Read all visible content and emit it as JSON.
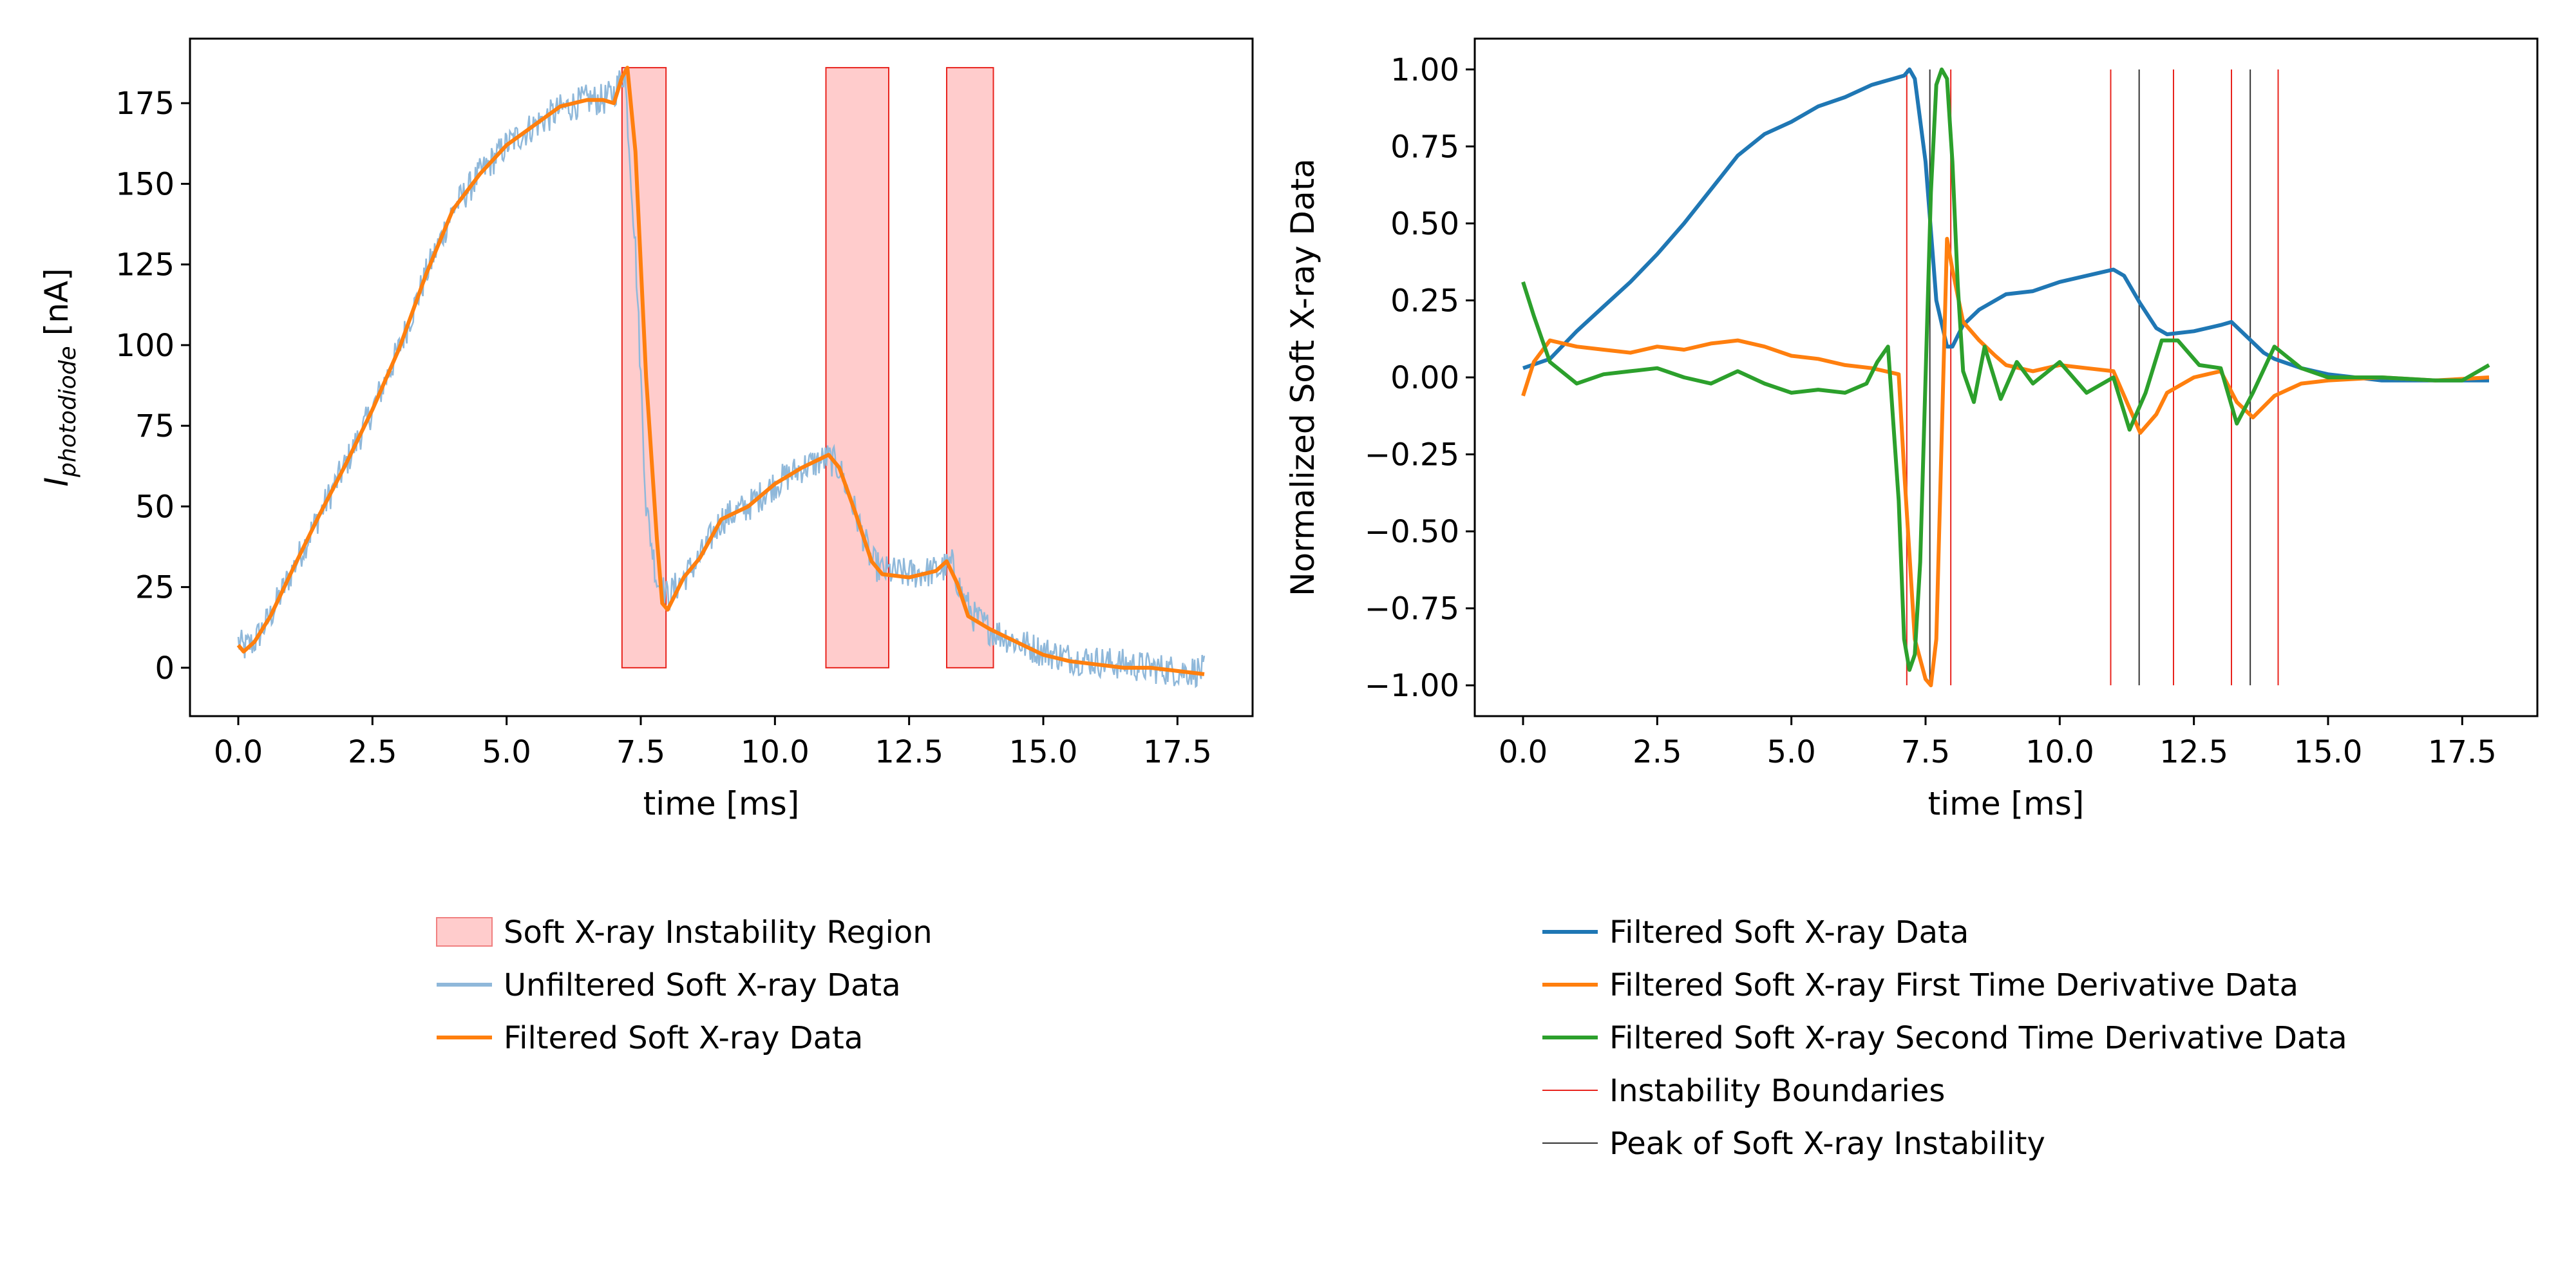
{
  "chart_data": [
    {
      "type": "line",
      "title": "",
      "xlabel": "time [ms]",
      "ylabel": {
        "main": "I",
        "subscript": "photodiode",
        "unit": " [nA]"
      },
      "xlim": [
        -0.9,
        18.9
      ],
      "ylim": [
        -15,
        195
      ],
      "xticks": [
        0.0,
        2.5,
        5.0,
        7.5,
        10.0,
        12.5,
        15.0,
        17.5
      ],
      "xtick_labels": [
        "0.0",
        "2.5",
        "5.0",
        "7.5",
        "10.0",
        "12.5",
        "15.0",
        "17.5"
      ],
      "yticks": [
        0,
        25,
        50,
        75,
        100,
        125,
        150,
        175
      ],
      "ytick_labels": [
        "0",
        "25",
        "50",
        "75",
        "100",
        "125",
        "150",
        "175"
      ],
      "instability_regions": [
        {
          "x0": 7.15,
          "x1": 7.97
        },
        {
          "x0": 10.95,
          "x1": 12.12
        },
        {
          "x0": 13.2,
          "x1": 14.07
        }
      ],
      "region_top": 186,
      "series": [
        {
          "name": "Unfiltered Soft X-ray Data",
          "color": "#8fb8da",
          "x": [
            0.0,
            0.1,
            0.3,
            0.6,
            1.0,
            1.5,
            2.0,
            2.5,
            3.0,
            3.5,
            4.0,
            4.5,
            5.0,
            5.5,
            6.0,
            6.5,
            6.8,
            7.0,
            7.2,
            7.4,
            7.6,
            7.8,
            8.0,
            8.3,
            8.6,
            9.0,
            9.5,
            10.0,
            10.5,
            11.0,
            11.2,
            11.5,
            11.8,
            12.0,
            12.5,
            13.0,
            13.3,
            13.5,
            13.7,
            14.0,
            14.5,
            15.0,
            15.5,
            16.0,
            16.5,
            17.0,
            17.5,
            18.0
          ],
          "y": [
            8,
            6,
            8,
            16,
            30,
            47,
            63,
            80,
            99,
            122,
            142,
            153,
            162,
            168,
            173,
            176,
            176,
            178,
            185,
            130,
            50,
            27,
            22,
            28,
            34,
            46,
            50,
            57,
            62,
            65,
            62,
            48,
            33,
            30,
            29,
            30,
            32,
            22,
            16,
            12,
            8,
            5,
            3,
            2,
            1,
            0,
            -1,
            -1
          ],
          "noise": 5
        },
        {
          "name": "Filtered Soft X-ray Data",
          "color": "#ff7f0e",
          "x": [
            0.0,
            0.1,
            0.3,
            0.6,
            1.0,
            1.5,
            2.0,
            2.5,
            3.0,
            3.5,
            4.0,
            4.5,
            5.0,
            5.5,
            6.0,
            6.5,
            6.8,
            7.0,
            7.15,
            7.25,
            7.4,
            7.6,
            7.8,
            7.9,
            8.0,
            8.3,
            8.6,
            9.0,
            9.5,
            10.0,
            10.5,
            11.0,
            11.2,
            11.5,
            11.8,
            12.0,
            12.5,
            13.0,
            13.2,
            13.4,
            13.6,
            14.0,
            14.5,
            15.0,
            15.5,
            16.0,
            16.5,
            17.0,
            17.5,
            18.0
          ],
          "y": [
            7,
            5,
            8,
            16,
            30,
            47,
            63,
            80,
            99,
            122,
            142,
            153,
            162,
            168,
            174,
            176,
            176,
            175,
            183,
            186,
            160,
            90,
            40,
            20,
            18,
            28,
            34,
            46,
            50,
            57,
            62,
            66,
            62,
            48,
            33,
            29,
            28,
            30,
            33,
            26,
            16,
            12,
            8,
            4,
            2,
            1,
            0,
            0,
            -1,
            -2
          ]
        }
      ],
      "legend": {
        "placement": "below",
        "entries": [
          {
            "label": "Soft X-ray Instability Region",
            "kind": "patch",
            "color": "#ffcccc",
            "edge": "#f08080"
          },
          {
            "label": "Unfiltered Soft X-ray Data",
            "kind": "line",
            "color": "#8fb8da"
          },
          {
            "label": "Filtered Soft X-ray Data",
            "kind": "line",
            "color": "#ff7f0e"
          }
        ]
      }
    },
    {
      "type": "line",
      "title": "",
      "xlabel": "time [ms]",
      "ylabel": "Normalized Soft X-ray Data",
      "xlim": [
        -0.9,
        18.9
      ],
      "ylim": [
        -1.1,
        1.1
      ],
      "xticks": [
        0.0,
        2.5,
        5.0,
        7.5,
        10.0,
        12.5,
        15.0,
        17.5
      ],
      "xtick_labels": [
        "0.0",
        "2.5",
        "5.0",
        "7.5",
        "10.0",
        "12.5",
        "15.0",
        "17.5"
      ],
      "yticks": [
        -1.0,
        -0.75,
        -0.5,
        -0.25,
        0.0,
        0.25,
        0.5,
        0.75,
        1.0
      ],
      "ytick_labels": [
        "−1.00",
        "−0.75",
        "−0.50",
        "−0.25",
        "0.00",
        "0.25",
        "0.50",
        "0.75",
        "1.00"
      ],
      "instability_boundaries": [
        7.15,
        7.97,
        10.95,
        12.12,
        13.2,
        14.07
      ],
      "instability_peaks": [
        7.58,
        11.48,
        13.55
      ],
      "series": [
        {
          "name": "Filtered Soft X-ray Data",
          "color": "#1f77b4",
          "x": [
            0.0,
            0.5,
            1.0,
            1.5,
            2.0,
            2.5,
            3.0,
            3.5,
            4.0,
            4.5,
            5.0,
            5.5,
            6.0,
            6.5,
            6.9,
            7.1,
            7.2,
            7.3,
            7.5,
            7.7,
            7.9,
            8.0,
            8.2,
            8.5,
            9.0,
            9.5,
            10.0,
            10.5,
            11.0,
            11.2,
            11.5,
            11.8,
            12.0,
            12.5,
            13.0,
            13.2,
            13.5,
            13.8,
            14.0,
            14.5,
            15.0,
            15.5,
            16.0,
            16.5,
            17.0,
            17.5,
            18.0
          ],
          "y": [
            0.03,
            0.06,
            0.15,
            0.23,
            0.31,
            0.4,
            0.5,
            0.61,
            0.72,
            0.79,
            0.83,
            0.88,
            0.91,
            0.95,
            0.97,
            0.98,
            1.0,
            0.97,
            0.7,
            0.25,
            0.1,
            0.1,
            0.17,
            0.22,
            0.27,
            0.28,
            0.31,
            0.33,
            0.35,
            0.33,
            0.24,
            0.16,
            0.14,
            0.15,
            0.17,
            0.18,
            0.13,
            0.08,
            0.06,
            0.03,
            0.01,
            0.0,
            -0.01,
            -0.01,
            -0.01,
            -0.01,
            -0.01
          ]
        },
        {
          "name": "Filtered Soft X-ray First Time Derivative Data",
          "color": "#ff7f0e",
          "x": [
            0.0,
            0.2,
            0.5,
            1.0,
            1.5,
            2.0,
            2.5,
            3.0,
            3.5,
            4.0,
            4.5,
            5.0,
            5.5,
            6.0,
            6.5,
            7.0,
            7.1,
            7.3,
            7.5,
            7.6,
            7.7,
            7.8,
            7.9,
            8.0,
            8.2,
            8.5,
            8.8,
            9.0,
            9.5,
            10.0,
            10.5,
            11.0,
            11.3,
            11.5,
            11.8,
            12.0,
            12.5,
            13.0,
            13.3,
            13.6,
            14.0,
            14.5,
            15.0,
            16.0,
            17.0,
            18.0
          ],
          "y": [
            -0.06,
            0.05,
            0.12,
            0.1,
            0.09,
            0.08,
            0.1,
            0.09,
            0.11,
            0.12,
            0.1,
            0.07,
            0.06,
            0.04,
            0.03,
            0.01,
            -0.3,
            -0.85,
            -0.98,
            -1.0,
            -0.85,
            -0.2,
            0.45,
            0.35,
            0.18,
            0.12,
            0.07,
            0.04,
            0.02,
            0.04,
            0.03,
            0.02,
            -0.1,
            -0.18,
            -0.12,
            -0.05,
            0.0,
            0.02,
            -0.08,
            -0.13,
            -0.06,
            -0.02,
            -0.01,
            0.0,
            -0.01,
            0.0
          ]
        },
        {
          "name": "Filtered Soft X-ray Second Time Derivative Data",
          "color": "#2ca02c",
          "x": [
            0.0,
            0.2,
            0.5,
            1.0,
            1.5,
            2.0,
            2.5,
            3.0,
            3.5,
            4.0,
            4.5,
            5.0,
            5.5,
            6.0,
            6.4,
            6.6,
            6.8,
            7.0,
            7.1,
            7.2,
            7.3,
            7.4,
            7.5,
            7.6,
            7.7,
            7.8,
            7.9,
            8.0,
            8.1,
            8.2,
            8.4,
            8.6,
            8.9,
            9.2,
            9.5,
            10.0,
            10.5,
            11.0,
            11.3,
            11.6,
            11.9,
            12.2,
            12.6,
            13.0,
            13.3,
            13.6,
            14.0,
            14.5,
            15.0,
            16.0,
            17.0,
            17.5,
            18.0
          ],
          "y": [
            0.31,
            0.2,
            0.05,
            -0.02,
            0.01,
            0.02,
            0.03,
            0.0,
            -0.02,
            0.02,
            -0.02,
            -0.05,
            -0.04,
            -0.05,
            -0.02,
            0.05,
            0.1,
            -0.4,
            -0.85,
            -0.95,
            -0.9,
            -0.6,
            0.0,
            0.6,
            0.95,
            1.0,
            0.97,
            0.7,
            0.3,
            0.02,
            -0.08,
            0.1,
            -0.07,
            0.05,
            -0.02,
            0.05,
            -0.05,
            0.0,
            -0.17,
            -0.05,
            0.12,
            0.12,
            0.04,
            0.03,
            -0.15,
            -0.05,
            0.1,
            0.03,
            0.0,
            0.0,
            -0.01,
            -0.01,
            0.04
          ]
        }
      ],
      "legend": {
        "placement": "below",
        "entries": [
          {
            "label": "Filtered Soft X-ray Data",
            "kind": "line",
            "color": "#1f77b4"
          },
          {
            "label": "Filtered Soft X-ray First Time Derivative Data",
            "kind": "line",
            "color": "#ff7f0e"
          },
          {
            "label": "Filtered Soft X-ray Second Time Derivative Data",
            "kind": "line",
            "color": "#2ca02c"
          },
          {
            "label": "Instability Boundaries",
            "kind": "thin",
            "color": "#e8231d"
          },
          {
            "label": "Peak of Soft X-ray Instability",
            "kind": "thin",
            "color": "#333333"
          }
        ]
      }
    }
  ]
}
